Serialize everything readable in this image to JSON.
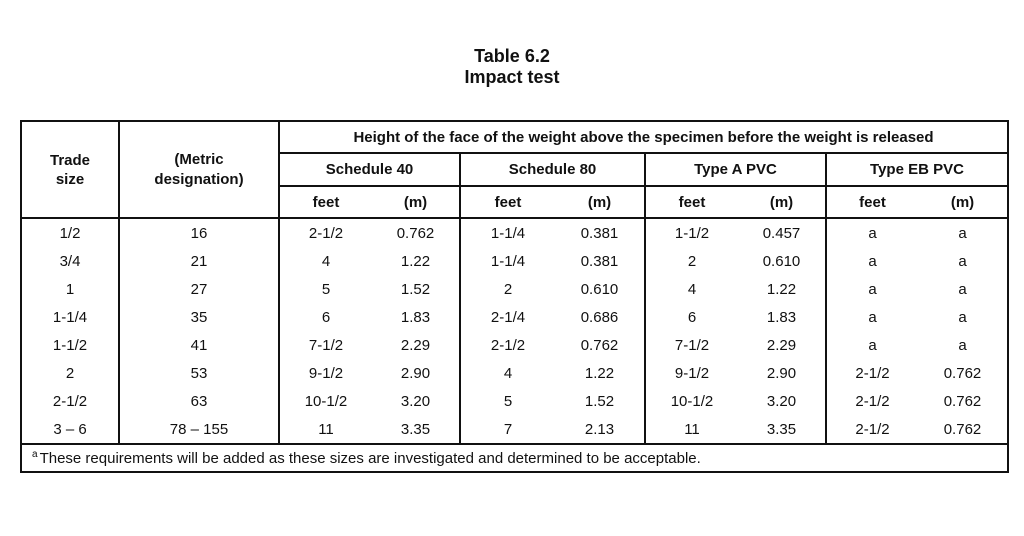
{
  "table_number": "Table 6.2",
  "table_title": "Impact test",
  "header": {
    "trade_size": [
      "Trade",
      "size"
    ],
    "metric_designation": [
      "(Metric",
      "designation)"
    ],
    "span_caption": "Height of the face of the weight above the specimen before the weight is released",
    "groups": [
      "Schedule 40",
      "Schedule 80",
      "Type A PVC",
      "Type EB PVC"
    ],
    "sub_feet": "feet",
    "sub_m": "(m)"
  },
  "rows": [
    [
      "1/2",
      "16",
      "2-1/2",
      "0.762",
      "1-1/4",
      "0.381",
      "1-1/2",
      "0.457",
      "a",
      "a"
    ],
    [
      "3/4",
      "21",
      "4",
      "1.22",
      "1-1/4",
      "0.381",
      "2",
      "0.610",
      "a",
      "a"
    ],
    [
      "1",
      "27",
      "5",
      "1.52",
      "2",
      "0.610",
      "4",
      "1.22",
      "a",
      "a"
    ],
    [
      "1-1/4",
      "35",
      "6",
      "1.83",
      "2-1/4",
      "0.686",
      "6",
      "1.83",
      "a",
      "a"
    ],
    [
      "1-1/2",
      "41",
      "7-1/2",
      "2.29",
      "2-1/2",
      "0.762",
      "7-1/2",
      "2.29",
      "a",
      "a"
    ],
    [
      "2",
      "53",
      "9-1/2",
      "2.90",
      "4",
      "1.22",
      "9-1/2",
      "2.90",
      "2-1/2",
      "0.762"
    ],
    [
      "2-1/2",
      "63",
      "10-1/2",
      "3.20",
      "5",
      "1.52",
      "10-1/2",
      "3.20",
      "2-1/2",
      "0.762"
    ],
    [
      "3 – 6",
      "78 – 155",
      "11",
      "3.35",
      "7",
      "2.13",
      "11",
      "3.35",
      "2-1/2",
      "0.762"
    ]
  ],
  "footnote": {
    "marker": "a",
    "text": "These requirements will be added as these sizes are investigated and determined to be acceptable."
  }
}
